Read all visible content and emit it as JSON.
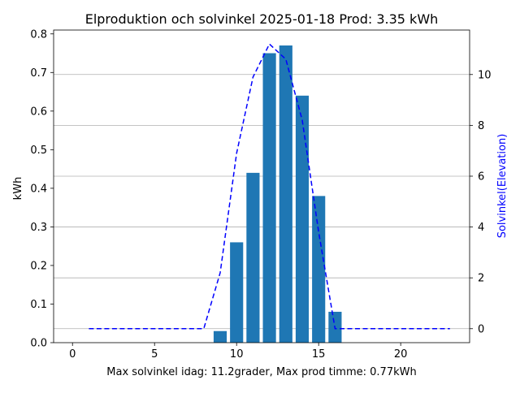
{
  "chart_data": {
    "type": "bar",
    "title": "Elproduktion och solvinkel 2025-01-18 Prod: 3.35 kWh",
    "xlabel": "Max solvinkel idag: 11.2grader, Max prod timme: 0.77kWh",
    "ylabel": "kWh",
    "y2label": "Solvinkel(Elevation)",
    "xlim": [
      -1.15,
      24.2
    ],
    "ylim": [
      0,
      0.81
    ],
    "y2lim": [
      -0.55,
      11.75
    ],
    "xticks": [
      0,
      5,
      10,
      15,
      20
    ],
    "yticks": [
      0.0,
      0.1,
      0.2,
      0.3,
      0.4,
      0.5,
      0.6,
      0.7,
      0.8
    ],
    "y2ticks": [
      0,
      2,
      4,
      6,
      8,
      10
    ],
    "grid": "right-axis horizontal lines",
    "bar_color": "#1f77b4",
    "line_color": "#0000ff",
    "y2label_color": "#0000ff",
    "series": [
      {
        "kind": "bar",
        "axis": "left",
        "x": [
          9,
          10,
          11,
          12,
          13,
          14,
          15,
          16
        ],
        "values": [
          0.03,
          0.26,
          0.44,
          0.75,
          0.77,
          0.64,
          0.38,
          0.08
        ]
      },
      {
        "kind": "line",
        "style": "dashed",
        "axis": "right",
        "x": [
          1,
          2,
          3,
          4,
          5,
          6,
          7,
          8,
          9,
          10,
          11,
          12,
          13,
          14,
          15,
          16,
          17,
          18,
          19,
          20,
          21,
          22,
          23
        ],
        "values": [
          0,
          0,
          0,
          0,
          0,
          0,
          0,
          0,
          2.2,
          6.9,
          9.9,
          11.2,
          10.6,
          8.2,
          3.8,
          0,
          0,
          0,
          0,
          0,
          0,
          0,
          0
        ]
      }
    ]
  }
}
